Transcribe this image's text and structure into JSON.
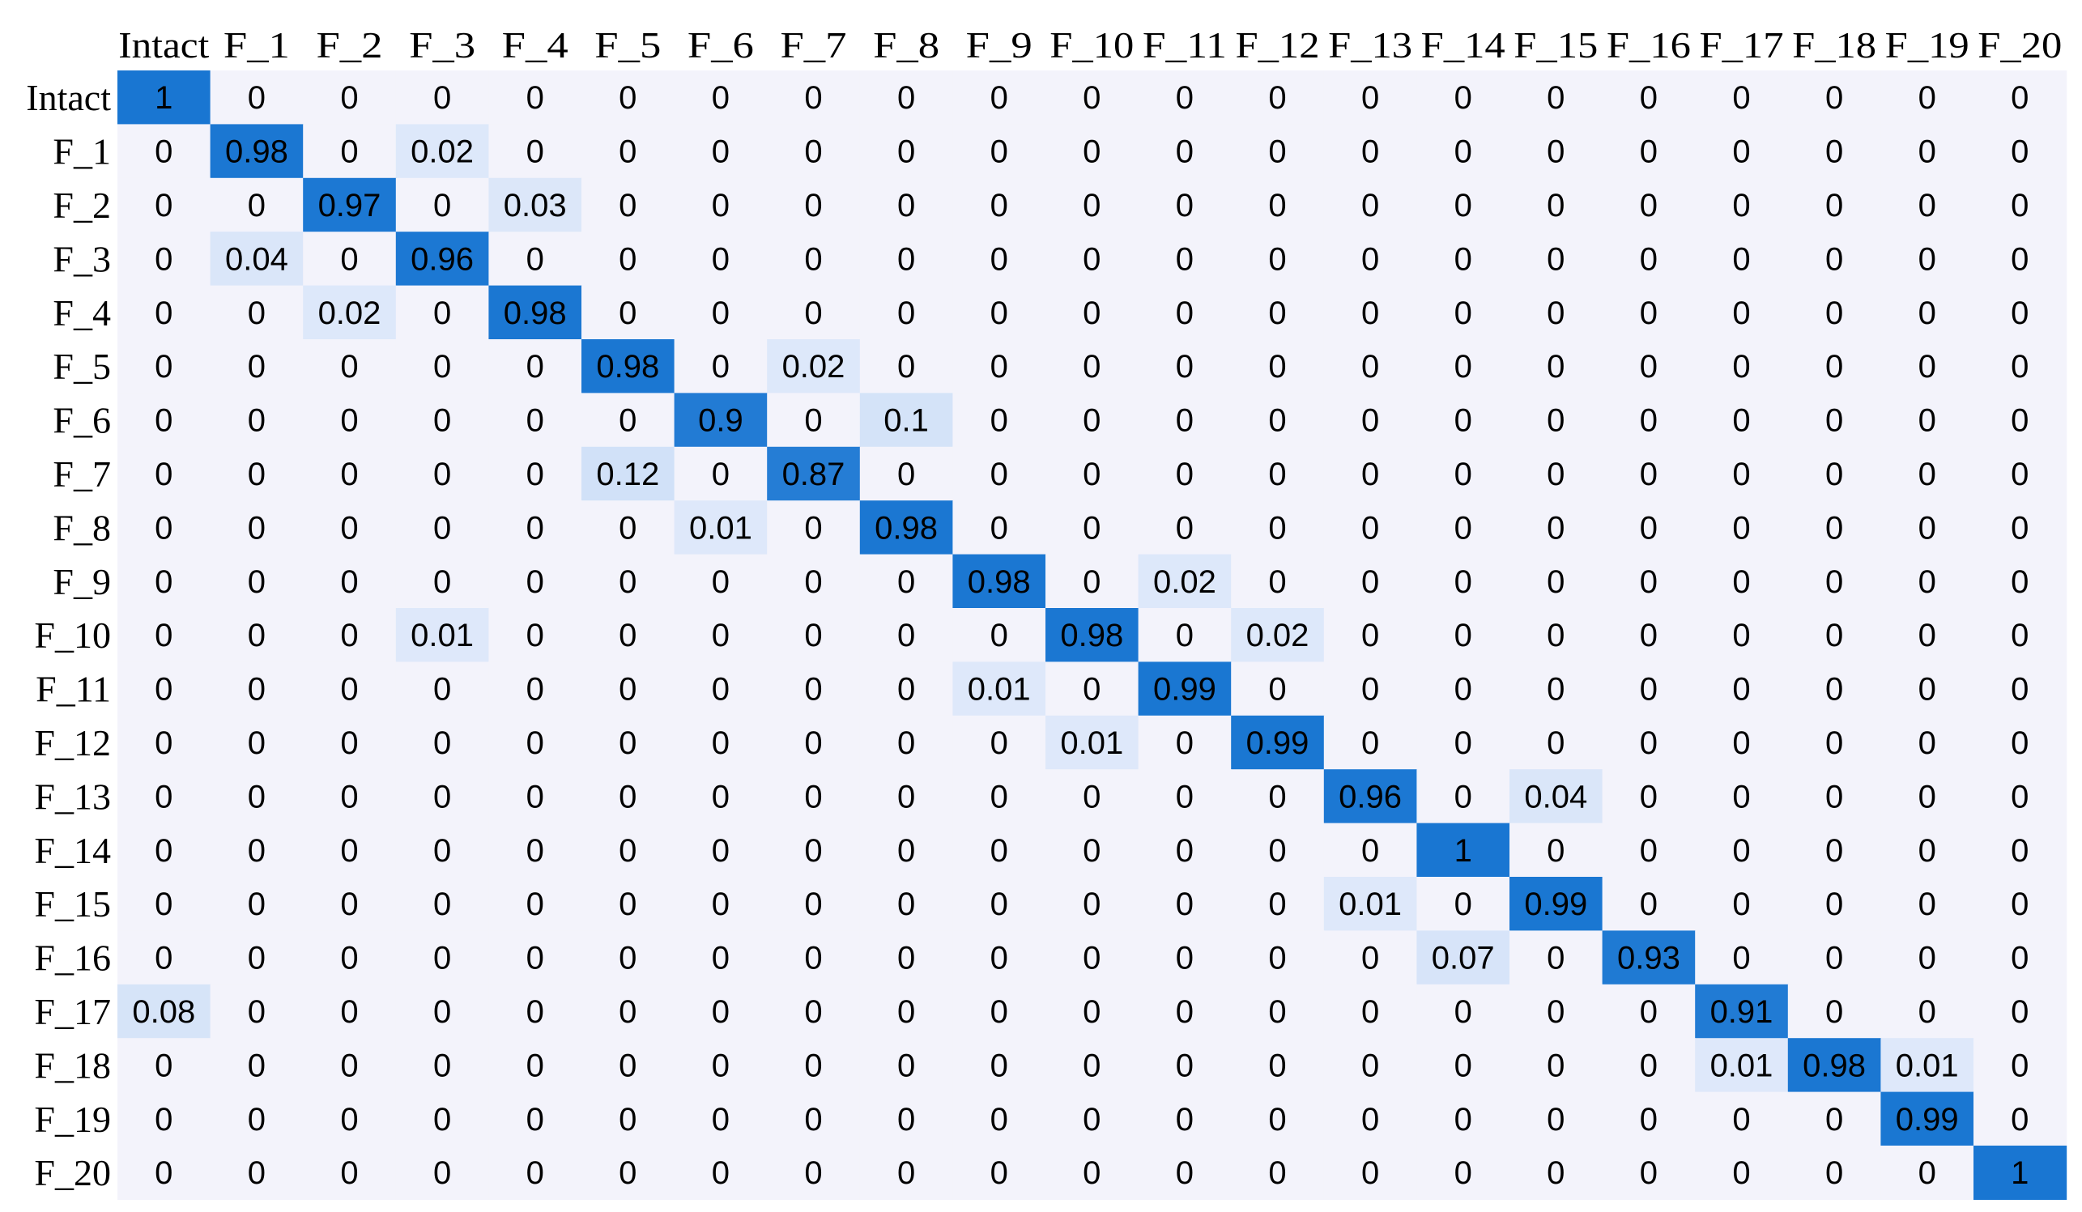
{
  "chart_data": {
    "type": "heatmap",
    "title": "",
    "xlabel": "",
    "ylabel": "",
    "x_labels": [
      "Intact",
      "F_1",
      "F_2",
      "F_3",
      "F_4",
      "F_5",
      "F_6",
      "F_7",
      "F_8",
      "F_9",
      "F_10",
      "F_11",
      "F_12",
      "F_13",
      "F_14",
      "F_15",
      "F_16",
      "F_17",
      "F_18",
      "F_19",
      "F_20"
    ],
    "y_labels": [
      "Intact",
      "F_1",
      "F_2",
      "F_3",
      "F_4",
      "F_5",
      "F_6",
      "F_7",
      "F_8",
      "F_9",
      "F_10",
      "F_11",
      "F_12",
      "F_13",
      "F_14",
      "F_15",
      "F_16",
      "F_17",
      "F_18",
      "F_19",
      "F_20"
    ],
    "x_label_position": "top",
    "values": [
      [
        1,
        0,
        0,
        0,
        0,
        0,
        0,
        0,
        0,
        0,
        0,
        0,
        0,
        0,
        0,
        0,
        0,
        0,
        0,
        0,
        0
      ],
      [
        0,
        0.98,
        0,
        0.02,
        0,
        0,
        0,
        0,
        0,
        0,
        0,
        0,
        0,
        0,
        0,
        0,
        0,
        0,
        0,
        0,
        0
      ],
      [
        0,
        0,
        0.97,
        0,
        0.03,
        0,
        0,
        0,
        0,
        0,
        0,
        0,
        0,
        0,
        0,
        0,
        0,
        0,
        0,
        0,
        0
      ],
      [
        0,
        0.04,
        0,
        0.96,
        0,
        0,
        0,
        0,
        0,
        0,
        0,
        0,
        0,
        0,
        0,
        0,
        0,
        0,
        0,
        0,
        0
      ],
      [
        0,
        0,
        0.02,
        0,
        0.98,
        0,
        0,
        0,
        0,
        0,
        0,
        0,
        0,
        0,
        0,
        0,
        0,
        0,
        0,
        0,
        0
      ],
      [
        0,
        0,
        0,
        0,
        0,
        0.98,
        0,
        0.02,
        0,
        0,
        0,
        0,
        0,
        0,
        0,
        0,
        0,
        0,
        0,
        0,
        0
      ],
      [
        0,
        0,
        0,
        0,
        0,
        0,
        0.9,
        0,
        0.1,
        0,
        0,
        0,
        0,
        0,
        0,
        0,
        0,
        0,
        0,
        0,
        0
      ],
      [
        0,
        0,
        0,
        0,
        0,
        0.12,
        0,
        0.87,
        0,
        0,
        0,
        0,
        0,
        0,
        0,
        0,
        0,
        0,
        0,
        0,
        0
      ],
      [
        0,
        0,
        0,
        0,
        0,
        0,
        0.01,
        0,
        0.98,
        0,
        0,
        0,
        0,
        0,
        0,
        0,
        0,
        0,
        0,
        0,
        0
      ],
      [
        0,
        0,
        0,
        0,
        0,
        0,
        0,
        0,
        0,
        0.98,
        0,
        0.02,
        0,
        0,
        0,
        0,
        0,
        0,
        0,
        0,
        0
      ],
      [
        0,
        0,
        0,
        0.01,
        0,
        0,
        0,
        0,
        0,
        0,
        0.98,
        0,
        0.02,
        0,
        0,
        0,
        0,
        0,
        0,
        0,
        0
      ],
      [
        0,
        0,
        0,
        0,
        0,
        0,
        0,
        0,
        0,
        0.01,
        0,
        0.99,
        0,
        0,
        0,
        0,
        0,
        0,
        0,
        0,
        0
      ],
      [
        0,
        0,
        0,
        0,
        0,
        0,
        0,
        0,
        0,
        0,
        0.01,
        0,
        0.99,
        0,
        0,
        0,
        0,
        0,
        0,
        0,
        0
      ],
      [
        0,
        0,
        0,
        0,
        0,
        0,
        0,
        0,
        0,
        0,
        0,
        0,
        0,
        0.96,
        0,
        0.04,
        0,
        0,
        0,
        0,
        0
      ],
      [
        0,
        0,
        0,
        0,
        0,
        0,
        0,
        0,
        0,
        0,
        0,
        0,
        0,
        0,
        1,
        0,
        0,
        0,
        0,
        0,
        0
      ],
      [
        0,
        0,
        0,
        0,
        0,
        0,
        0,
        0,
        0,
        0,
        0,
        0,
        0,
        0.01,
        0,
        0.99,
        0,
        0,
        0,
        0,
        0
      ],
      [
        0,
        0,
        0,
        0,
        0,
        0,
        0,
        0,
        0,
        0,
        0,
        0,
        0,
        0,
        0.07,
        0,
        0.93,
        0,
        0,
        0,
        0
      ],
      [
        0.08,
        0,
        0,
        0,
        0,
        0,
        0,
        0,
        0,
        0,
        0,
        0,
        0,
        0,
        0,
        0,
        0,
        0.91,
        0,
        0,
        0
      ],
      [
        0,
        0,
        0,
        0,
        0,
        0,
        0,
        0,
        0,
        0,
        0,
        0,
        0,
        0,
        0,
        0,
        0,
        0.01,
        0.98,
        0.01,
        0
      ],
      [
        0,
        0,
        0,
        0,
        0,
        0,
        0,
        0,
        0,
        0,
        0,
        0,
        0,
        0,
        0,
        0,
        0,
        0,
        0,
        0.99,
        0
      ],
      [
        0,
        0,
        0,
        0,
        0,
        0,
        0,
        0,
        0,
        0,
        0,
        0,
        0,
        0,
        0,
        0,
        0,
        0,
        0,
        0,
        1
      ]
    ],
    "color_scale": {
      "low": "#f3f3fb",
      "light": "#dfe9fa",
      "high": "#1976d2"
    },
    "text_color": "#000000",
    "grid": false,
    "legend": "none"
  }
}
